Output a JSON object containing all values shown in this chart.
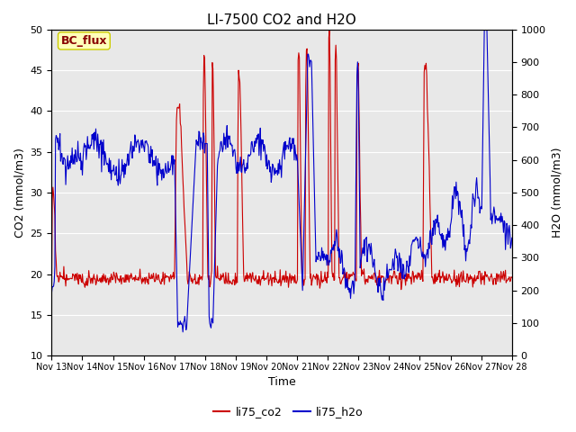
{
  "title": "LI-7500 CO2 and H2O",
  "xlabel": "Time",
  "ylabel_left": "CO2 (mmol/m3)",
  "ylabel_right": "H2O (mmol/m3)",
  "annotation": "BC_flux",
  "ylim_left": [
    10,
    50
  ],
  "ylim_right": [
    0,
    1000
  ],
  "yticks_left": [
    10,
    15,
    20,
    25,
    30,
    35,
    40,
    45,
    50
  ],
  "yticks_right": [
    0,
    100,
    200,
    300,
    400,
    500,
    600,
    700,
    800,
    900,
    1000
  ],
  "xtick_labels": [
    "Nov 13",
    "Nov 14",
    "Nov 15",
    "Nov 16",
    "Nov 17",
    "Nov 18",
    "Nov 19",
    "Nov 20",
    "Nov 21",
    "Nov 22",
    "Nov 23",
    "Nov 24",
    "Nov 25",
    "Nov 26",
    "Nov 27",
    "Nov 28"
  ],
  "line_co2_color": "#cc0000",
  "line_h2o_color": "#0000cc",
  "plot_bg_color": "#e8e8e8",
  "fig_bg_color": "#ffffff",
  "legend_co2": "li75_co2",
  "legend_h2o": "li75_h2o",
  "title_fontsize": 11,
  "axis_label_fontsize": 9,
  "tick_fontsize": 8,
  "annotation_fontsize": 9,
  "annotation_text_color": "#880000",
  "annotation_face_color": "#ffffbb",
  "annotation_edge_color": "#cccc00",
  "legend_fontsize": 9
}
